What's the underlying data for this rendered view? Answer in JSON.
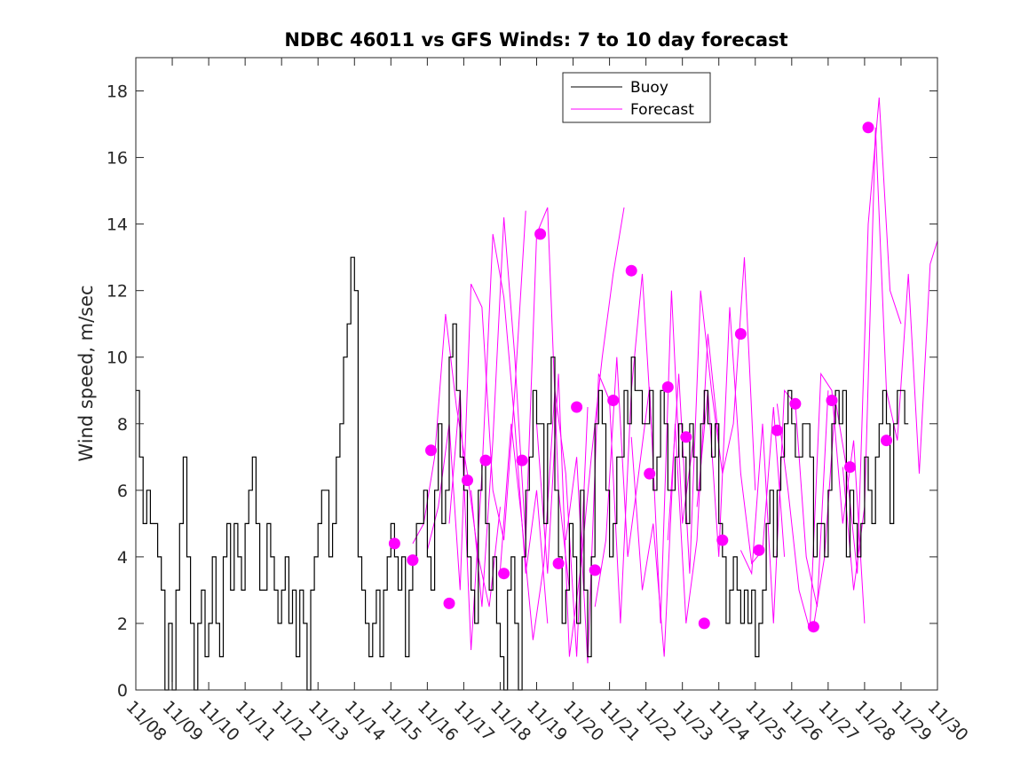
{
  "chart_data": {
    "type": "line",
    "title": "NDBC 46011 vs GFS Winds: 7 to 10 day forecast",
    "xlabel": "",
    "ylabel": "Wind speed, m/sec",
    "xlim": [
      0,
      22
    ],
    "ylim": [
      0,
      19
    ],
    "yticks": [
      0,
      2,
      4,
      6,
      8,
      10,
      12,
      14,
      16,
      18
    ],
    "x_tick_labels": [
      "11/08",
      "11/09",
      "11/10",
      "11/11",
      "11/12",
      "11/13",
      "11/14",
      "11/15",
      "11/16",
      "11/17",
      "11/18",
      "11/19",
      "11/20",
      "11/21",
      "11/22",
      "11/23",
      "11/24",
      "11/25",
      "11/26",
      "11/27",
      "11/28",
      "11/29",
      "11/30"
    ],
    "x_units": "days since 11/08",
    "grid": false,
    "legend": {
      "position": "top-center",
      "entries": [
        "Buoy",
        "Forecast"
      ]
    },
    "colors": {
      "buoy": "#000000",
      "forecast": "#ff00ff",
      "axes": "#262626"
    },
    "series": [
      {
        "name": "Buoy",
        "style": "step",
        "x": [
          0,
          0.1,
          0.2,
          0.3,
          0.4,
          0.5,
          0.6,
          0.7,
          0.8,
          0.9,
          1,
          1.1,
          1.2,
          1.3,
          1.4,
          1.5,
          1.6,
          1.7,
          1.8,
          1.9,
          2,
          2.1,
          2.2,
          2.3,
          2.4,
          2.5,
          2.6,
          2.7,
          2.8,
          2.9,
          3,
          3.1,
          3.2,
          3.3,
          3.4,
          3.5,
          3.6,
          3.7,
          3.8,
          3.9,
          4,
          4.1,
          4.2,
          4.3,
          4.4,
          4.5,
          4.6,
          4.7,
          4.8,
          4.9,
          5,
          5.1,
          5.2,
          5.3,
          5.4,
          5.5,
          5.6,
          5.7,
          5.8,
          5.9,
          6,
          6.1,
          6.2,
          6.3,
          6.4,
          6.5,
          6.6,
          6.7,
          6.8,
          6.9,
          7,
          7.1,
          7.2,
          7.3,
          7.4,
          7.5,
          7.6,
          7.7,
          7.8,
          7.9,
          8,
          8.1,
          8.2,
          8.3,
          8.4,
          8.5,
          8.6,
          8.7,
          8.8,
          8.9,
          9,
          9.1,
          9.2,
          9.3,
          9.4,
          9.5,
          9.6,
          9.7,
          9.8,
          9.9,
          10,
          10.1,
          10.2,
          10.3,
          10.4,
          10.5,
          10.6,
          10.7,
          10.8,
          10.9,
          11,
          11.1,
          11.2,
          11.3,
          11.4,
          11.5,
          11.6,
          11.7,
          11.8,
          11.9,
          12,
          12.1,
          12.2,
          12.3,
          12.4,
          12.5,
          12.6,
          12.7,
          12.8,
          12.9,
          13,
          13.1,
          13.2,
          13.3,
          13.4,
          13.5,
          13.6,
          13.7,
          13.8,
          13.9,
          14,
          14.1,
          14.2,
          14.3,
          14.4,
          14.5,
          14.6,
          14.7,
          14.8,
          14.9,
          15,
          15.1,
          15.2,
          15.3,
          15.4,
          15.5,
          15.6,
          15.7,
          15.8,
          15.9,
          16,
          16.1,
          16.2,
          16.3,
          16.4,
          16.5,
          16.6,
          16.7,
          16.8,
          16.9,
          17,
          17.1,
          17.2,
          17.3,
          17.4,
          17.5,
          17.6,
          17.7,
          17.8,
          17.9,
          18,
          18.1,
          18.2,
          18.3,
          18.4,
          18.5,
          18.6,
          18.7,
          18.8,
          18.9,
          19,
          19.1,
          19.2,
          19.3,
          19.4,
          19.5,
          19.6,
          19.7,
          19.8,
          19.9,
          20,
          20.1,
          20.2,
          20.3,
          20.4,
          20.5,
          20.6,
          20.7,
          20.8,
          20.9,
          21,
          21.1
        ],
        "values": [
          9,
          7,
          5,
          6,
          5,
          5,
          4,
          3,
          0,
          2,
          0,
          3,
          5,
          7,
          4,
          2,
          0,
          2,
          3,
          1,
          2,
          4,
          2,
          1,
          4,
          5,
          3,
          5,
          4,
          3,
          5,
          6,
          7,
          5,
          3,
          3,
          5,
          4,
          3,
          2,
          3,
          4,
          2,
          3,
          1,
          3,
          2,
          0,
          3,
          4,
          5,
          6,
          6,
          4,
          5,
          7,
          8,
          10,
          11,
          13,
          12,
          4,
          3,
          2,
          1,
          2,
          3,
          1,
          3,
          4,
          5,
          4,
          3,
          4,
          1,
          3,
          4,
          5,
          5,
          6,
          4,
          3,
          6,
          8,
          5,
          6,
          10,
          11,
          9,
          7,
          6,
          4,
          3,
          2,
          6,
          7,
          5,
          3,
          4,
          2,
          1,
          0,
          3,
          4,
          2,
          0,
          4,
          6,
          7,
          9,
          8,
          8,
          5,
          8,
          10,
          6,
          4,
          2,
          3,
          5,
          4,
          2,
          6,
          3,
          1,
          4,
          8,
          9,
          8,
          6,
          4,
          5,
          7,
          7,
          9,
          8,
          10,
          9,
          9,
          8,
          8,
          9,
          6,
          7,
          9,
          8,
          6,
          6,
          7,
          8,
          7,
          5,
          8,
          7,
          6,
          8,
          9,
          8,
          7,
          8,
          5,
          4,
          2,
          3,
          4,
          3,
          2,
          3,
          2,
          3,
          1,
          2,
          3,
          5,
          6,
          4,
          6,
          7,
          8,
          9,
          8,
          7,
          7,
          8,
          8,
          7,
          4,
          5,
          5,
          4,
          6,
          8,
          9,
          8,
          9,
          4,
          6,
          5,
          4,
          5,
          7,
          6,
          5,
          7,
          8,
          9,
          8,
          5,
          8,
          9,
          9,
          8
        ]
      },
      {
        "name": "Forecast",
        "style": "multi-line",
        "lines": [
          {
            "x": [
              7.6,
              7.9,
              8.2,
              8.5,
              8.8,
              9.1,
              9.4,
              9.7,
              10.0
            ],
            "values": [
              4.4,
              5.0,
              7.0,
              11.3,
              8.5,
              6.5,
              4.0,
              2.5,
              5.5
            ]
          },
          {
            "x": [
              8.0,
              8.3,
              8.6,
              8.9,
              9.2,
              9.5,
              9.8,
              10.1,
              10.4,
              10.7
            ],
            "values": [
              4.2,
              5.5,
              8.0,
              3.0,
              12.2,
              11.5,
              6.0,
              4.5,
              9.0,
              14.4
            ]
          },
          {
            "x": [
              8.6,
              8.9,
              9.2,
              9.5,
              9.8,
              10.1,
              10.4,
              10.7,
              11.0,
              11.3
            ],
            "values": [
              5.0,
              9.0,
              1.2,
              6.5,
              13.7,
              11.8,
              8.0,
              3.5,
              6.0,
              2.0
            ]
          },
          {
            "x": [
              9.2,
              9.5,
              9.8,
              10.1,
              10.4,
              10.7,
              11.0,
              11.3,
              11.6,
              11.9
            ],
            "values": [
              6.0,
              2.5,
              7.5,
              14.2,
              10.0,
              4.5,
              13.7,
              14.5,
              6.0,
              3.0
            ]
          },
          {
            "x": [
              10.0,
              10.3,
              10.6,
              10.9,
              11.2,
              11.5,
              11.8,
              12.1,
              12.4
            ],
            "values": [
              3.6,
              8.0,
              5.0,
              1.5,
              3.8,
              9.0,
              6.5,
              1.0,
              8.5
            ]
          },
          {
            "x": [
              11.0,
              11.3,
              11.6,
              11.9,
              12.2,
              12.5,
              12.8,
              13.1,
              13.4
            ],
            "values": [
              8.0,
              3.5,
              9.5,
              1.0,
              3.6,
              7.0,
              10.0,
              12.5,
              14.5
            ]
          },
          {
            "x": [
              11.8,
              12.1,
              12.4,
              12.7,
              13.0,
              13.3,
              13.6,
              13.9,
              14.2
            ],
            "values": [
              4.5,
              7.0,
              0.8,
              9.5,
              8.7,
              2.0,
              9.0,
              12.5,
              7.0
            ]
          },
          {
            "x": [
              12.6,
              12.9,
              13.2,
              13.5,
              13.8,
              14.1,
              14.4,
              14.7,
              15.0,
              15.3
            ],
            "values": [
              2.5,
              4.5,
              10.0,
              4.0,
              6.5,
              9.1,
              2.0,
              12.0,
              5.0,
              7.5
            ]
          },
          {
            "x": [
              13.6,
              13.9,
              14.2,
              14.5,
              14.8,
              15.1,
              15.4,
              15.7,
              16.0
            ],
            "values": [
              7.6,
              3.0,
              5.0,
              1.0,
              8.0,
              2.0,
              4.5,
              10.7,
              7.5
            ]
          },
          {
            "x": [
              14.6,
              14.9,
              15.2,
              15.5,
              15.8,
              16.1,
              16.4,
              16.7,
              17.0
            ],
            "values": [
              4.5,
              9.5,
              3.5,
              12.0,
              9.0,
              6.5,
              8.0,
              13.0,
              6.0
            ]
          },
          {
            "x": [
              15.4,
              15.7,
              16.0,
              16.3,
              16.6,
              16.9,
              17.2,
              17.5,
              17.8
            ],
            "values": [
              5.5,
              9.0,
              4.0,
              11.5,
              6.5,
              3.8,
              4.2,
              8.5,
              4.0
            ]
          },
          {
            "x": [
              16.6,
              16.9,
              17.2,
              17.5,
              17.8,
              18.1,
              18.4,
              18.7,
              19.0
            ],
            "values": [
              4.2,
              3.5,
              8.0,
              2.0,
              9.0,
              8.6,
              4.0,
              2.5,
              9.0
            ]
          },
          {
            "x": [
              17.6,
              17.9,
              18.2,
              18.5,
              18.8,
              19.1,
              19.4,
              19.7,
              20.0
            ],
            "values": [
              8.6,
              6.0,
              3.0,
              1.8,
              9.5,
              9.0,
              5.0,
              7.5,
              2.0
            ]
          },
          {
            "x": [
              18.6,
              18.9,
              19.2,
              19.5,
              19.8,
              20.1,
              20.4,
              20.7,
              21.0
            ],
            "values": [
              1.9,
              4.0,
              8.7,
              6.7,
              3.5,
              14.0,
              17.8,
              12.0,
              11.0
            ]
          },
          {
            "x": [
              19.4,
              19.7,
              20.0,
              20.3,
              20.6,
              20.9,
              21.2,
              21.5,
              21.8,
              22.0
            ],
            "values": [
              6.7,
              3.0,
              5.5,
              16.9,
              9.0,
              7.5,
              12.5,
              6.5,
              12.8,
              13.5
            ]
          }
        ],
        "markers": {
          "x": [
            7.1,
            7.6,
            8.1,
            8.6,
            9.1,
            9.6,
            10.1,
            10.6,
            11.1,
            11.6,
            12.1,
            12.6,
            13.1,
            13.6,
            14.1,
            14.6,
            15.1,
            15.6,
            16.1,
            16.6,
            17.1,
            17.6,
            18.1,
            18.6,
            19.1,
            19.6,
            20.1,
            20.6
          ],
          "values": [
            4.4,
            3.9,
            7.2,
            2.6,
            6.3,
            6.9,
            3.5,
            6.9,
            13.7,
            3.8,
            8.5,
            3.6,
            8.7,
            12.6,
            6.5,
            9.1,
            7.6,
            2.0,
            4.5,
            10.7,
            4.2,
            7.8,
            8.6,
            1.9,
            8.7,
            6.7,
            16.9,
            7.5
          ]
        }
      }
    ]
  }
}
